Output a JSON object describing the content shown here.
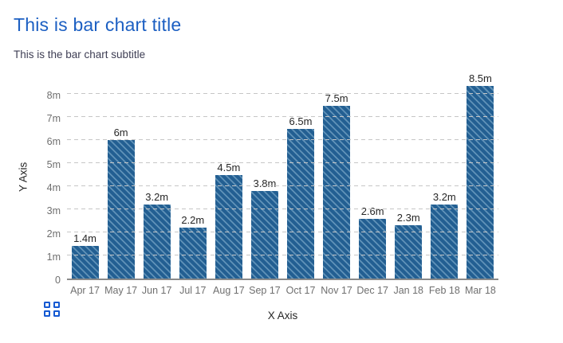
{
  "header": {
    "title": "This is bar chart title",
    "subtitle": "This is the bar chart subtitle"
  },
  "chart_data": {
    "type": "bar",
    "title": "This is bar chart title",
    "subtitle": "This is the bar chart subtitle",
    "xlabel": "X Axis",
    "ylabel": "Y Axis",
    "categories": [
      "Apr 17",
      "May 17",
      "Jun 17",
      "Jul 17",
      "Aug 17",
      "Sep 17",
      "Oct 17",
      "Nov 17",
      "Dec 17",
      "Jan 18",
      "Feb 18",
      "Mar 18"
    ],
    "values": [
      1.4,
      6,
      3.2,
      2.2,
      4.5,
      3.8,
      6.5,
      7.5,
      2.6,
      2.3,
      3.2,
      8.5
    ],
    "value_labels": [
      "1.4m",
      "6m",
      "3.2m",
      "2.2m",
      "4.5m",
      "3.8m",
      "6.5m",
      "7.5m",
      "2.6m",
      "2.3m",
      "3.2m",
      "8.5m"
    ],
    "unit": "millions",
    "ylim": [
      0,
      8.5
    ],
    "y_tick_interval": 1,
    "y_ticks": [
      {
        "label": "0",
        "value": 0
      },
      {
        "label": "1m",
        "value": 1
      },
      {
        "label": "2m",
        "value": 2
      },
      {
        "label": "3m",
        "value": 3
      },
      {
        "label": "4m",
        "value": 4
      },
      {
        "label": "5m",
        "value": 5
      },
      {
        "label": "6m",
        "value": 6
      },
      {
        "label": "7m",
        "value": 7
      },
      {
        "label": "8m",
        "value": 8
      }
    ],
    "grid": "horizontal dashed gridlines at each 1m tick",
    "legend": "none",
    "bar_hatch": "diagonal backslash stripes"
  },
  "icons": {
    "bottom_left": "grid-of-four-squares-icon"
  },
  "colors": {
    "title_blue": "#1c5fc2",
    "subtitle_color": "#3e3e54",
    "tick_gray": "#6f6f6f",
    "axis_title_color": "#262626",
    "value_label_color": "#262626",
    "bar_fill": "#235f92",
    "bar_hatch": "#6092b8",
    "gridline": "#c6c6c6",
    "axis_line": "#8a8a8a",
    "icon_blue": "#1459d2",
    "background": "#ffffff"
  }
}
